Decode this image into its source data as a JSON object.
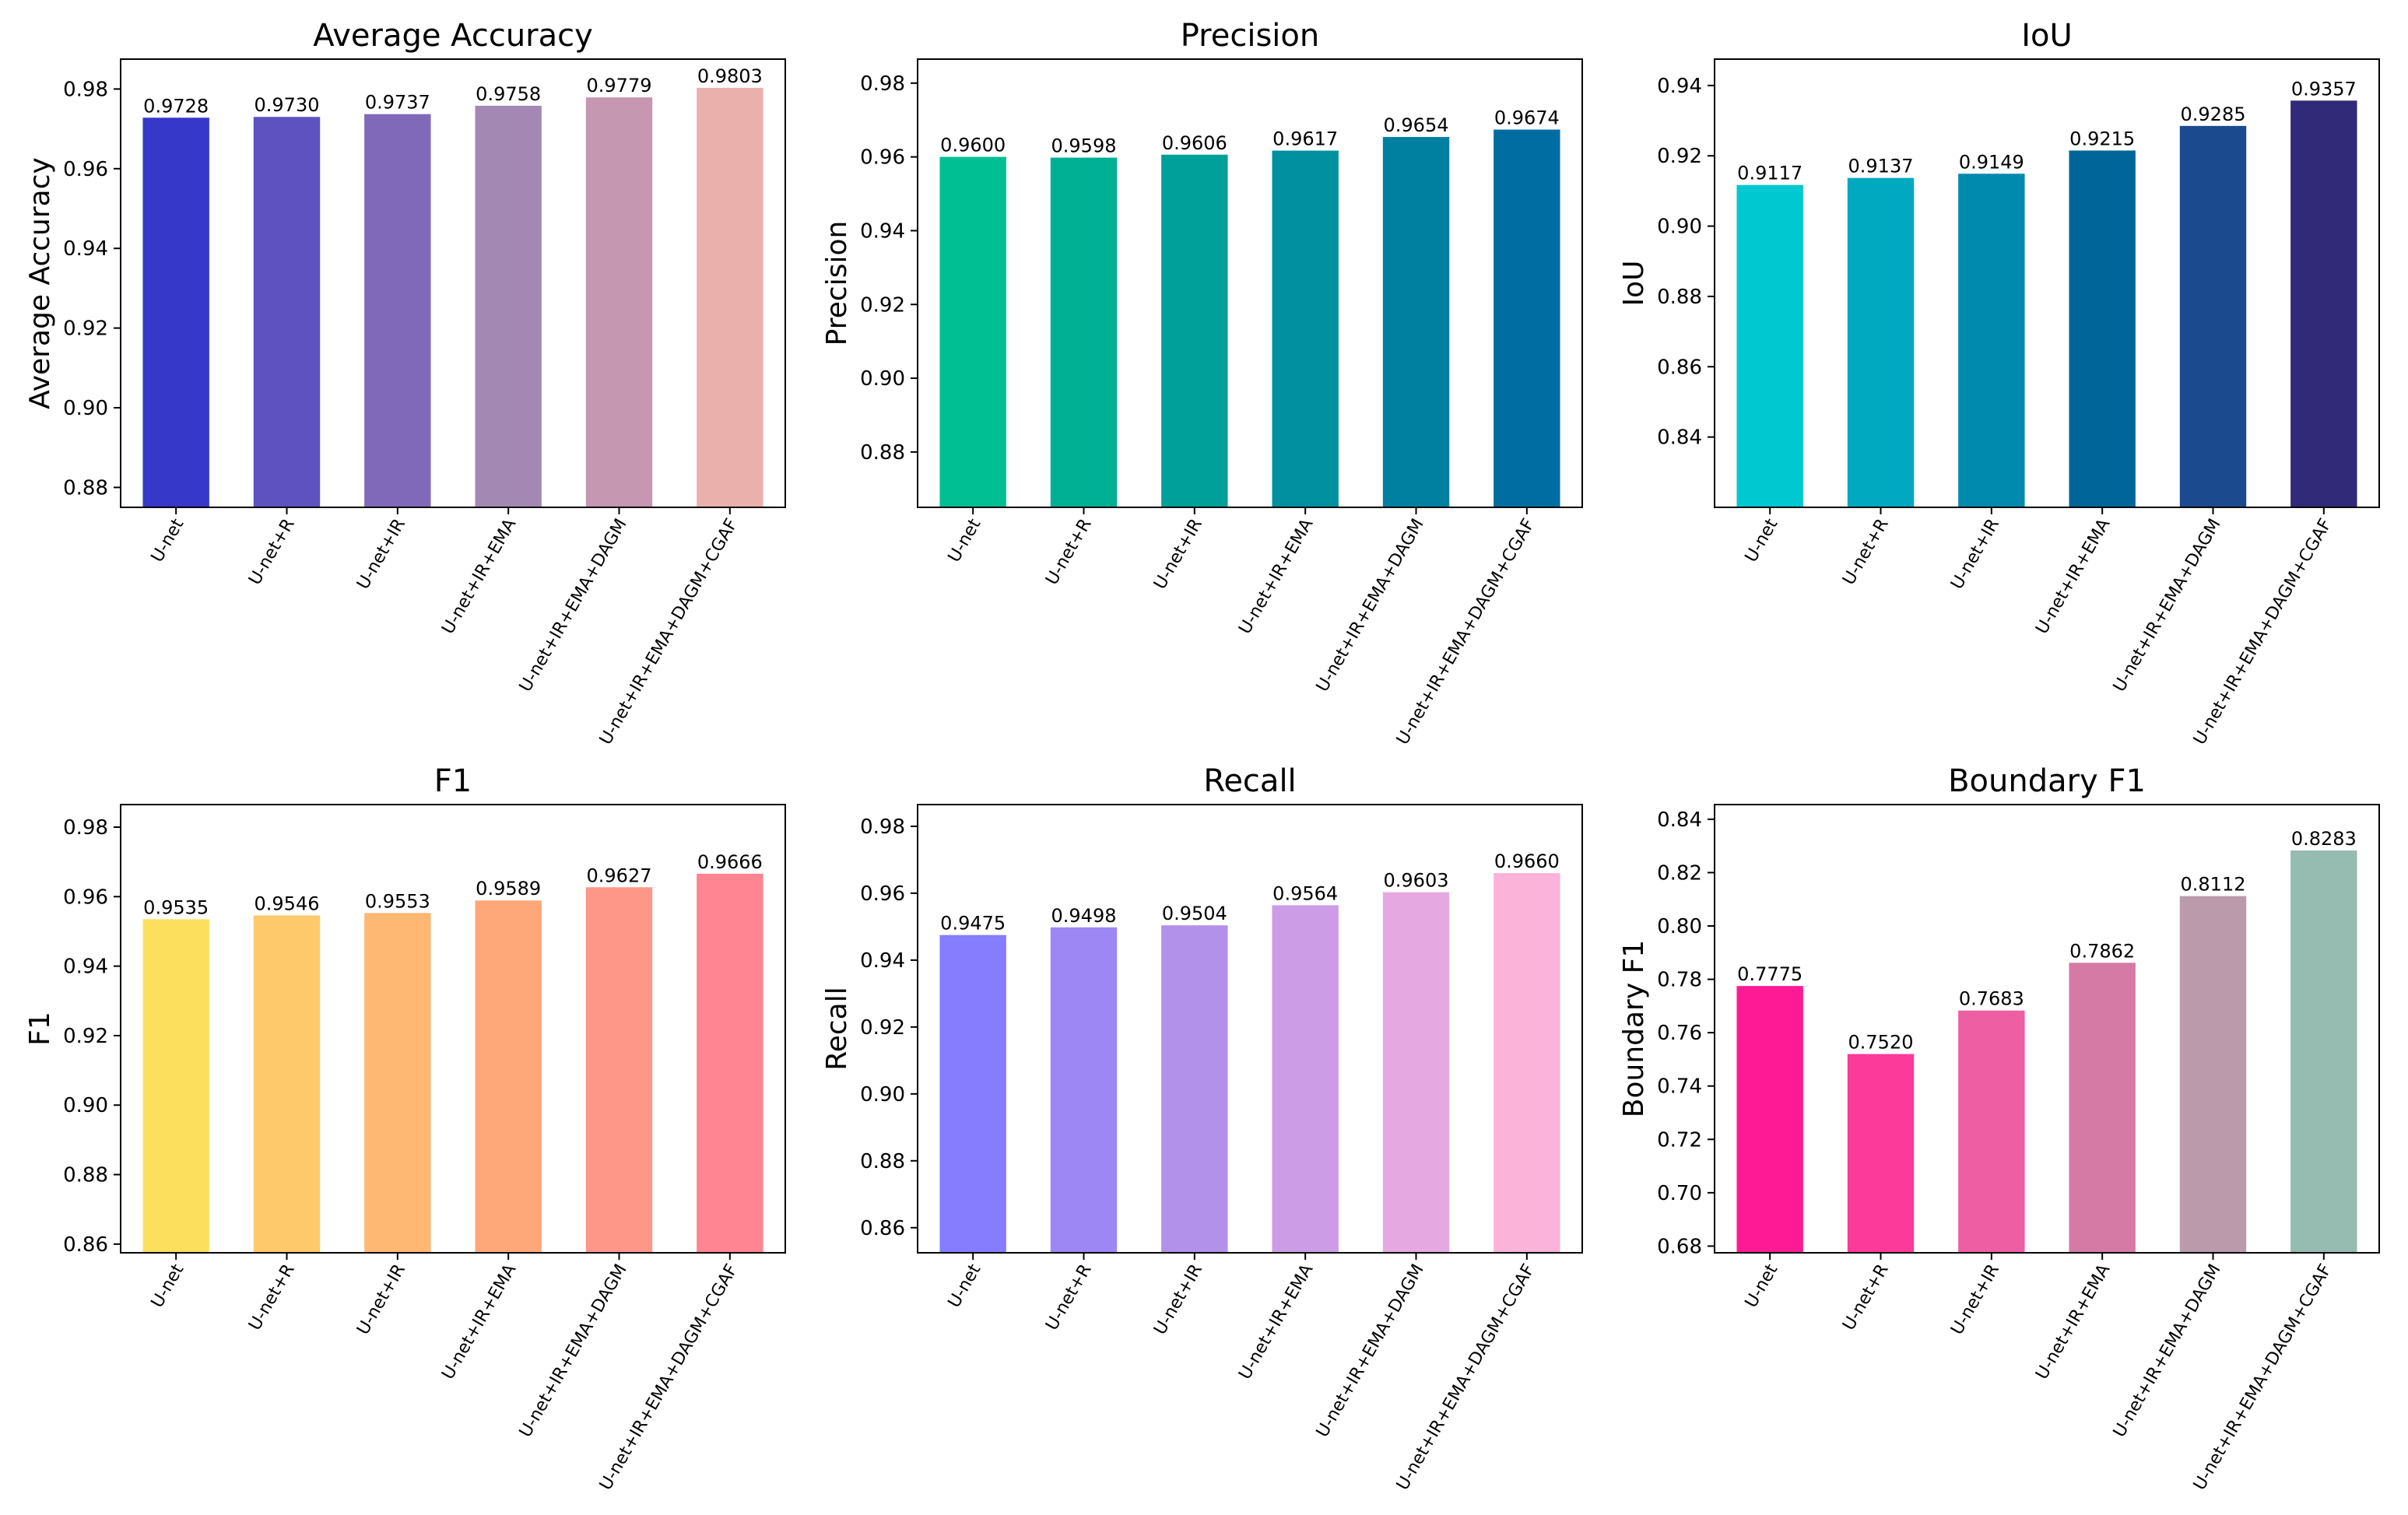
{
  "chart_data": [
    {
      "type": "bar",
      "title": "Average Accuracy",
      "xlabel": "",
      "ylabel": "Average Accuracy",
      "categories": [
        "U-net",
        "U-net+R",
        "U-net+IR",
        "U-net+IR+EMA",
        "U-net+IR+EMA+DAGM",
        "U-net+IR+EMA+DAGM+CGAF"
      ],
      "values": [
        0.9728,
        0.973,
        0.9737,
        0.9758,
        0.9779,
        0.9803
      ],
      "value_labels": [
        "0.9728",
        "0.9730",
        "0.9737",
        "0.9758",
        "0.9779",
        "0.9803"
      ],
      "ylim": [
        0.875,
        0.9875
      ],
      "yticks": [
        0.88,
        0.9,
        0.92,
        0.94,
        0.96,
        0.98
      ],
      "ytick_labels": [
        "0.88",
        "0.90",
        "0.92",
        "0.94",
        "0.96",
        "0.98"
      ],
      "colors": [
        "#3538c8",
        "#5d52c0",
        "#8169ba",
        "#a488b4",
        "#c697b1",
        "#eab0ac"
      ]
    },
    {
      "type": "bar",
      "title": "Precision",
      "xlabel": "",
      "ylabel": "Precision",
      "categories": [
        "U-net",
        "U-net+R",
        "U-net+IR",
        "U-net+IR+EMA",
        "U-net+IR+EMA+DAGM",
        "U-net+IR+EMA+DAGM+CGAF"
      ],
      "values": [
        0.96,
        0.9598,
        0.9606,
        0.9617,
        0.9654,
        0.9674
      ],
      "value_labels": [
        "0.9600",
        "0.9598",
        "0.9606",
        "0.9617",
        "0.9654",
        "0.9674"
      ],
      "ylim": [
        0.865,
        0.9865
      ],
      "yticks": [
        0.88,
        0.9,
        0.92,
        0.94,
        0.96,
        0.98
      ],
      "ytick_labels": [
        "0.88",
        "0.90",
        "0.92",
        "0.94",
        "0.96",
        "0.98"
      ],
      "colors": [
        "#00c093",
        "#00b094",
        "#00a09a",
        "#00909f",
        "#0080a0",
        "#006da2"
      ]
    },
    {
      "type": "bar",
      "title": "IoU",
      "xlabel": "",
      "ylabel": "IoU",
      "categories": [
        "U-net",
        "U-net+R",
        "U-net+IR",
        "U-net+IR+EMA",
        "U-net+IR+EMA+DAGM",
        "U-net+IR+EMA+DAGM+CGAF"
      ],
      "values": [
        0.9117,
        0.9137,
        0.9149,
        0.9215,
        0.9285,
        0.9357
      ],
      "value_labels": [
        "0.9117",
        "0.9137",
        "0.9149",
        "0.9215",
        "0.9285",
        "0.9357"
      ],
      "ylim": [
        0.82,
        0.9475
      ],
      "yticks": [
        0.84,
        0.86,
        0.88,
        0.9,
        0.92,
        0.94
      ],
      "ytick_labels": [
        "0.84",
        "0.86",
        "0.88",
        "0.90",
        "0.92",
        "0.94"
      ],
      "colors": [
        "#00c8d0",
        "#00a8c0",
        "#008aae",
        "#00669a",
        "#1b4b8e",
        "#312a78"
      ]
    },
    {
      "type": "bar",
      "title": "F1",
      "xlabel": "",
      "ylabel": "F1",
      "categories": [
        "U-net",
        "U-net+R",
        "U-net+IR",
        "U-net+IR+EMA",
        "U-net+IR+EMA+DAGM",
        "U-net+IR+EMA+DAGM+CGAF"
      ],
      "values": [
        0.9535,
        0.9546,
        0.9553,
        0.9589,
        0.9627,
        0.9666
      ],
      "value_labels": [
        "0.9535",
        "0.9546",
        "0.9553",
        "0.9589",
        "0.9627",
        "0.9666"
      ],
      "ylim": [
        0.8575,
        0.9865
      ],
      "yticks": [
        0.86,
        0.88,
        0.9,
        0.92,
        0.94,
        0.96,
        0.98
      ],
      "ytick_labels": [
        "0.86",
        "0.88",
        "0.90",
        "0.92",
        "0.94",
        "0.96",
        "0.98"
      ],
      "colors": [
        "#fddf5e",
        "#fec96a",
        "#feb873",
        "#fea87a",
        "#fe9788",
        "#fe8591"
      ]
    },
    {
      "type": "bar",
      "title": "Recall",
      "xlabel": "",
      "ylabel": "Recall",
      "categories": [
        "U-net",
        "U-net+R",
        "U-net+IR",
        "U-net+IR+EMA",
        "U-net+IR+EMA+DAGM",
        "U-net+IR+EMA+DAGM+CGAF"
      ],
      "values": [
        0.9475,
        0.9498,
        0.9504,
        0.9564,
        0.9603,
        0.966
      ],
      "value_labels": [
        "0.9475",
        "0.9498",
        "0.9504",
        "0.9564",
        "0.9603",
        "0.9660"
      ],
      "ylim": [
        0.8525,
        0.9865
      ],
      "yticks": [
        0.86,
        0.88,
        0.9,
        0.92,
        0.94,
        0.96,
        0.98
      ],
      "ytick_labels": [
        "0.86",
        "0.88",
        "0.90",
        "0.92",
        "0.94",
        "0.96",
        "0.98"
      ],
      "colors": [
        "#867cfe",
        "#9c87f4",
        "#b291ea",
        "#cc9de6",
        "#e6a8e0",
        "#fbb3da"
      ]
    },
    {
      "type": "bar",
      "title": "Boundary F1",
      "xlabel": "",
      "ylabel": "Boundary F1",
      "categories": [
        "U-net",
        "U-net+R",
        "U-net+IR",
        "U-net+IR+EMA",
        "U-net+IR+EMA+DAGM",
        "U-net+IR+EMA+DAGM+CGAF"
      ],
      "values": [
        0.7775,
        0.752,
        0.7683,
        0.7862,
        0.8112,
        0.8283
      ],
      "value_labels": [
        "0.7775",
        "0.7520",
        "0.7683",
        "0.7862",
        "0.8112",
        "0.8283"
      ],
      "ylim": [
        0.6775,
        0.8455
      ],
      "yticks": [
        0.68,
        0.7,
        0.72,
        0.74,
        0.76,
        0.78,
        0.8,
        0.82,
        0.84
      ],
      "ytick_labels": [
        "0.68",
        "0.70",
        "0.72",
        "0.74",
        "0.76",
        "0.78",
        "0.80",
        "0.82",
        "0.84"
      ],
      "colors": [
        "#fe1a94",
        "#fc3a9a",
        "#ed5ea2",
        "#d47aa4",
        "#bb9aac",
        "#96bbb1"
      ]
    }
  ]
}
